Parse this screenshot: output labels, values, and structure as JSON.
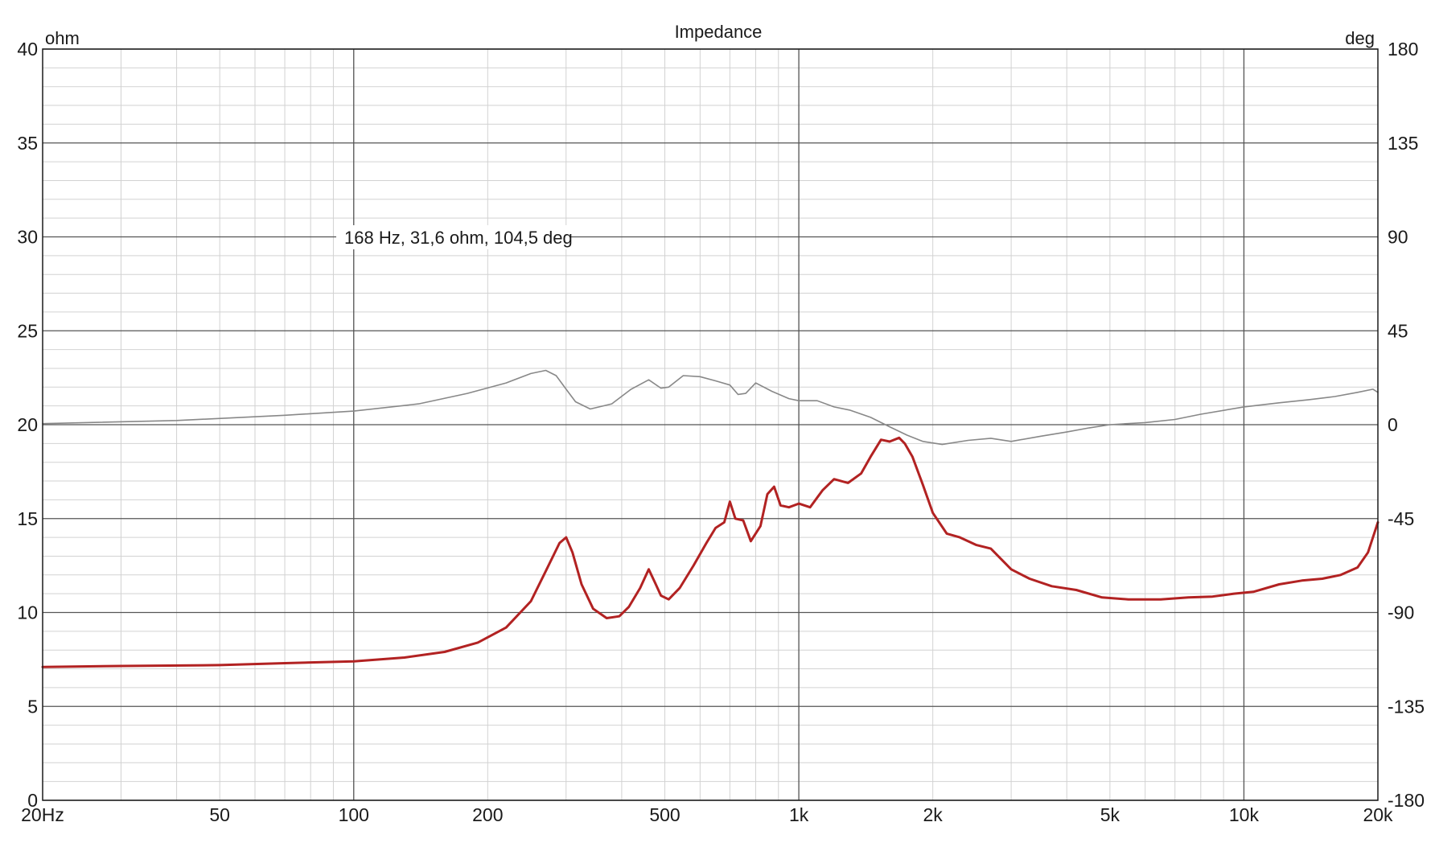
{
  "chart_data": {
    "type": "line",
    "title": "Impedance",
    "left_axis": {
      "unit": "ohm",
      "range": [
        0,
        40
      ],
      "ticks": [
        {
          "value": 0,
          "label": "0"
        },
        {
          "value": 5,
          "label": "5"
        },
        {
          "value": 10,
          "label": "10"
        },
        {
          "value": 15,
          "label": "15"
        },
        {
          "value": 20,
          "label": "20"
        },
        {
          "value": 25,
          "label": "25"
        },
        {
          "value": 30,
          "label": "30"
        },
        {
          "value": 35,
          "label": "35"
        },
        {
          "value": 40,
          "label": "40"
        }
      ]
    },
    "right_axis": {
      "unit": "deg",
      "range": [
        -180,
        180
      ],
      "ticks": [
        {
          "value": -180,
          "label": "-180"
        },
        {
          "value": -135,
          "label": "-135"
        },
        {
          "value": -90,
          "label": "-90"
        },
        {
          "value": -45,
          "label": "-45"
        },
        {
          "value": 0,
          "label": "0"
        },
        {
          "value": 45,
          "label": "45"
        },
        {
          "value": 90,
          "label": "90"
        },
        {
          "value": 135,
          "label": "135"
        },
        {
          "value": 180,
          "label": "180"
        }
      ]
    },
    "x_axis": {
      "scale": "log",
      "range": [
        20,
        20000
      ],
      "ticks": [
        {
          "value": 20,
          "label": "20Hz"
        },
        {
          "value": 50,
          "label": "50"
        },
        {
          "value": 100,
          "label": "100"
        },
        {
          "value": 200,
          "label": "200"
        },
        {
          "value": 500,
          "label": "500"
        },
        {
          "value": 1000,
          "label": "1k"
        },
        {
          "value": 2000,
          "label": "2k"
        },
        {
          "value": 5000,
          "label": "5k"
        },
        {
          "value": 10000,
          "label": "10k"
        },
        {
          "value": 20000,
          "label": "20k"
        }
      ]
    },
    "grid": true,
    "cursor_readout": "168 Hz, 31,6 ohm, 104,5 deg",
    "series": [
      {
        "axis": "left",
        "color": "#b22222",
        "points": [
          [
            20,
            7.1
          ],
          [
            30,
            7.15
          ],
          [
            50,
            7.2
          ],
          [
            70,
            7.3
          ],
          [
            100,
            7.4
          ],
          [
            130,
            7.6
          ],
          [
            160,
            7.9
          ],
          [
            190,
            8.4
          ],
          [
            220,
            9.2
          ],
          [
            250,
            10.6
          ],
          [
            270,
            12.2
          ],
          [
            290,
            13.7
          ],
          [
            300,
            14.0
          ],
          [
            310,
            13.2
          ],
          [
            325,
            11.5
          ],
          [
            345,
            10.2
          ],
          [
            370,
            9.7
          ],
          [
            395,
            9.8
          ],
          [
            415,
            10.3
          ],
          [
            440,
            11.3
          ],
          [
            460,
            12.3
          ],
          [
            475,
            11.6
          ],
          [
            490,
            10.9
          ],
          [
            510,
            10.7
          ],
          [
            540,
            11.3
          ],
          [
            580,
            12.5
          ],
          [
            620,
            13.7
          ],
          [
            650,
            14.5
          ],
          [
            680,
            14.8
          ],
          [
            700,
            15.9
          ],
          [
            720,
            15.0
          ],
          [
            750,
            14.9
          ],
          [
            780,
            13.8
          ],
          [
            820,
            14.6
          ],
          [
            850,
            16.3
          ],
          [
            880,
            16.7
          ],
          [
            910,
            15.7
          ],
          [
            950,
            15.6
          ],
          [
            1000,
            15.8
          ],
          [
            1060,
            15.6
          ],
          [
            1130,
            16.5
          ],
          [
            1200,
            17.1
          ],
          [
            1290,
            16.9
          ],
          [
            1380,
            17.4
          ],
          [
            1450,
            18.3
          ],
          [
            1530,
            19.2
          ],
          [
            1600,
            19.1
          ],
          [
            1680,
            19.3
          ],
          [
            1730,
            19.0
          ],
          [
            1800,
            18.3
          ],
          [
            1900,
            16.8
          ],
          [
            2000,
            15.3
          ],
          [
            2150,
            14.2
          ],
          [
            2300,
            14.0
          ],
          [
            2500,
            13.6
          ],
          [
            2700,
            13.4
          ],
          [
            3000,
            12.3
          ],
          [
            3300,
            11.8
          ],
          [
            3700,
            11.4
          ],
          [
            4200,
            11.2
          ],
          [
            4800,
            10.8
          ],
          [
            5500,
            10.7
          ],
          [
            6500,
            10.7
          ],
          [
            7500,
            10.8
          ],
          [
            8500,
            10.85
          ],
          [
            9500,
            11.0
          ],
          [
            10500,
            11.1
          ],
          [
            12000,
            11.5
          ],
          [
            13500,
            11.7
          ],
          [
            15000,
            11.8
          ],
          [
            16500,
            12.0
          ],
          [
            18000,
            12.4
          ],
          [
            19000,
            13.2
          ],
          [
            20000,
            14.8
          ]
        ]
      },
      {
        "axis": "right",
        "color": "#888888",
        "points": [
          [
            20,
            0.5
          ],
          [
            40,
            2.0
          ],
          [
            70,
            4.5
          ],
          [
            100,
            6.5
          ],
          [
            140,
            10.0
          ],
          [
            180,
            15.0
          ],
          [
            220,
            20.0
          ],
          [
            250,
            24.5
          ],
          [
            270,
            26.0
          ],
          [
            285,
            23.5
          ],
          [
            300,
            17.0
          ],
          [
            315,
            11.0
          ],
          [
            340,
            7.5
          ],
          [
            380,
            10.0
          ],
          [
            420,
            17.0
          ],
          [
            460,
            21.5
          ],
          [
            490,
            17.5
          ],
          [
            510,
            18.0
          ],
          [
            550,
            23.5
          ],
          [
            600,
            23.0
          ],
          [
            650,
            21.0
          ],
          [
            700,
            19.0
          ],
          [
            730,
            14.5
          ],
          [
            760,
            15.0
          ],
          [
            800,
            20.0
          ],
          [
            870,
            16.0
          ],
          [
            950,
            12.5
          ],
          [
            1000,
            11.5
          ],
          [
            1100,
            11.5
          ],
          [
            1200,
            8.5
          ],
          [
            1300,
            7.0
          ],
          [
            1450,
            3.5
          ],
          [
            1600,
            -1.0
          ],
          [
            1750,
            -5.0
          ],
          [
            1900,
            -8.0
          ],
          [
            2100,
            -9.5
          ],
          [
            2400,
            -7.5
          ],
          [
            2700,
            -6.5
          ],
          [
            3000,
            -8.0
          ],
          [
            3500,
            -5.5
          ],
          [
            4000,
            -3.5
          ],
          [
            4500,
            -1.5
          ],
          [
            5000,
            0.0
          ],
          [
            6000,
            1.0
          ],
          [
            7000,
            2.5
          ],
          [
            8000,
            5.0
          ],
          [
            10000,
            8.5
          ],
          [
            12000,
            10.5
          ],
          [
            14000,
            12.0
          ],
          [
            16000,
            13.5
          ],
          [
            18000,
            15.5
          ],
          [
            19500,
            17.0
          ],
          [
            20000,
            15.5
          ]
        ]
      }
    ]
  }
}
